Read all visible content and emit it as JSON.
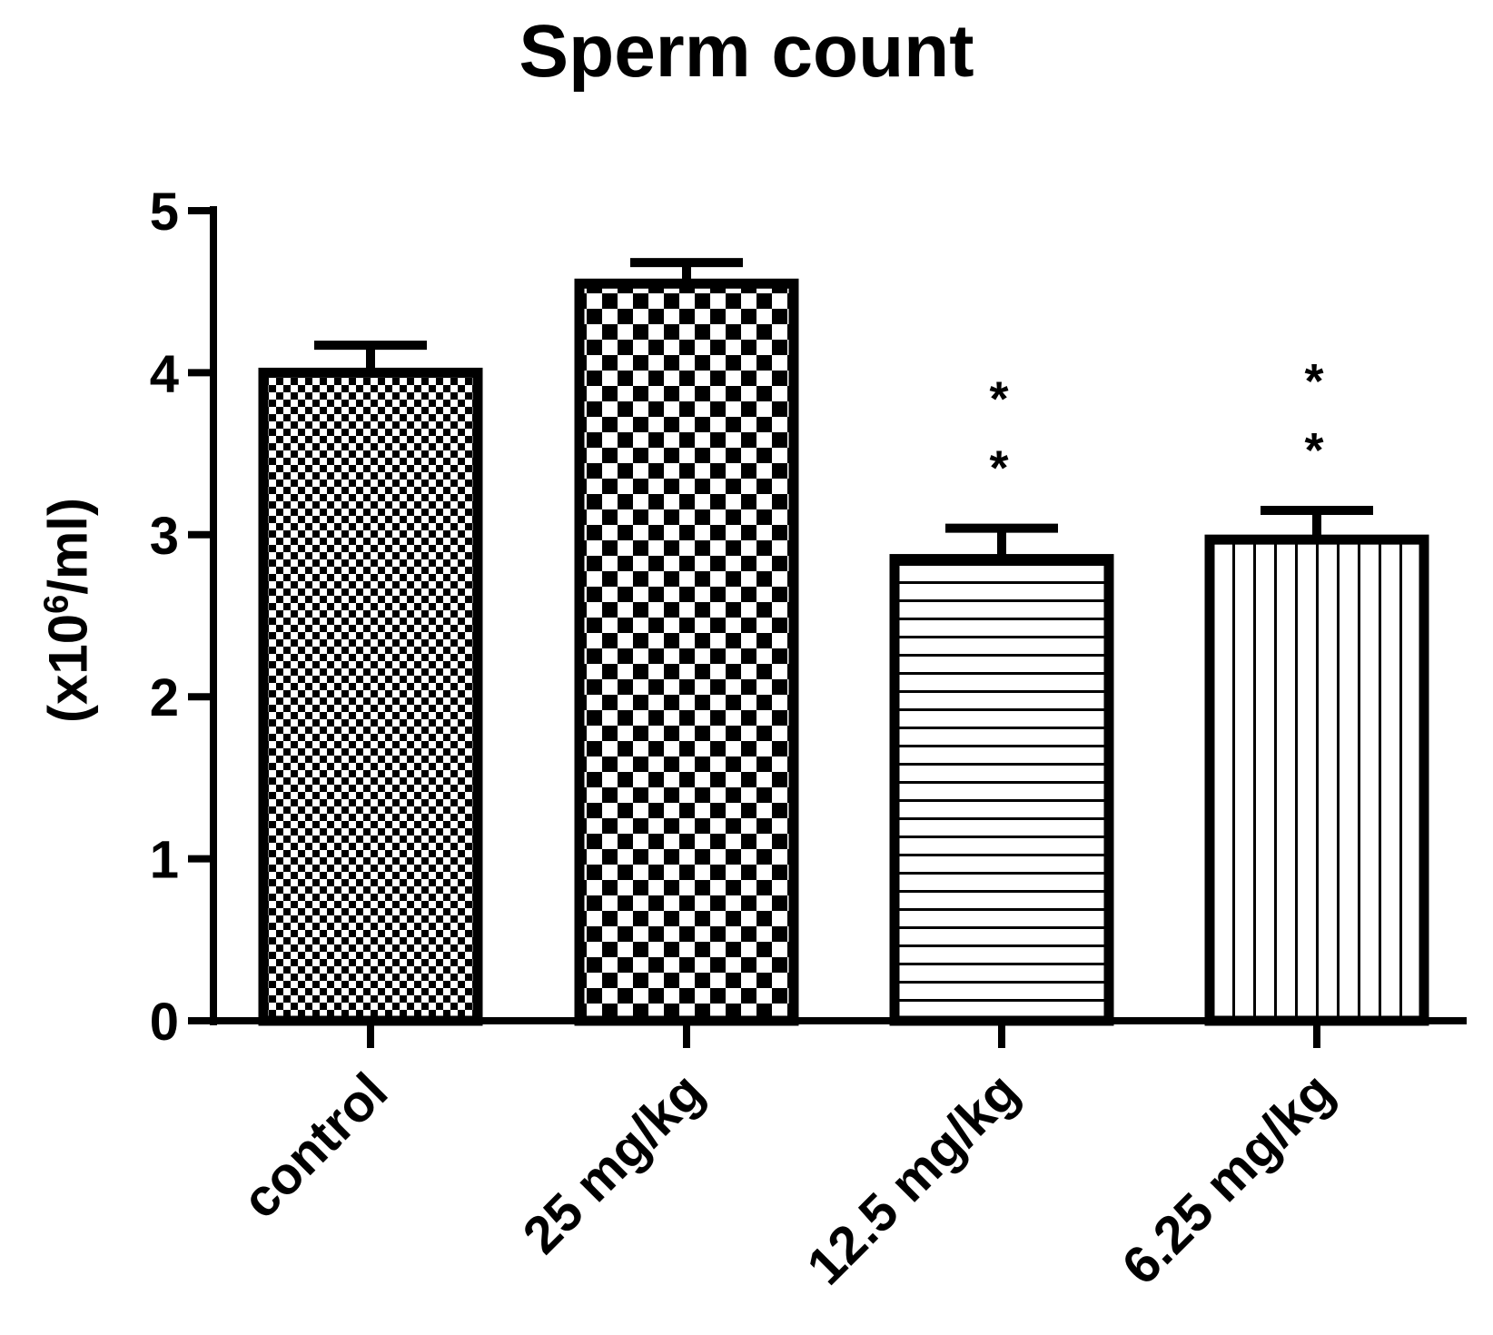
{
  "chart_data": {
    "type": "bar",
    "title": "Sperm count",
    "ylabel_prefix": "(x10",
    "ylabel_sup": "6",
    "ylabel_suffix": "/ml)",
    "xlabel": "",
    "ylim": [
      0,
      5
    ],
    "yticks": [
      "0",
      "1",
      "2",
      "3",
      "4",
      "5"
    ],
    "categories": [
      "control",
      "25 mg/kg",
      "12.5 mg/kg",
      "6.25 mg/kg"
    ],
    "values": [
      4.0,
      4.55,
      2.85,
      2.97
    ],
    "errors": [
      0.17,
      0.13,
      0.19,
      0.18
    ],
    "significance": [
      "",
      "",
      "**",
      "**"
    ],
    "fill_patterns": [
      "fine-checker",
      "coarse-checker",
      "horizontal-lines",
      "vertical-lines"
    ],
    "bar_color": "#000000",
    "grid": false,
    "legend": "none"
  }
}
